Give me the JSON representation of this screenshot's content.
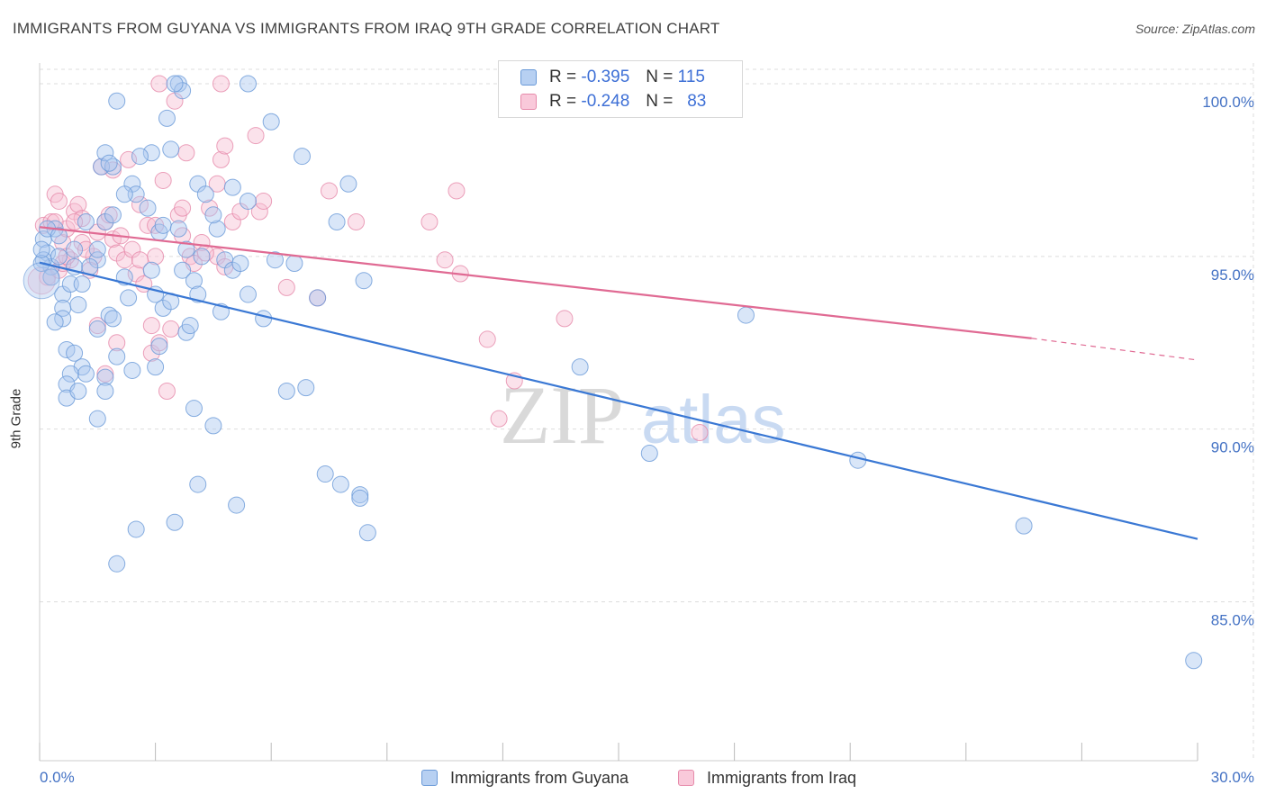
{
  "title": "IMMIGRANTS FROM GUYANA VS IMMIGRANTS FROM IRAQ 9TH GRADE CORRELATION CHART",
  "source": "Source: ZipAtlas.com",
  "watermark": {
    "zip": "ZIP",
    "atlas": "atlas"
  },
  "legend": {
    "r_label": "R =",
    "n_label": "N =",
    "guyana": {
      "r": "-0.395",
      "n": "115"
    },
    "iraq": {
      "r": "-0.248",
      "n": "83"
    }
  },
  "colors": {
    "guyana_fill": "#aac8f0",
    "guyana_stroke": "#6a9ad8",
    "guyana_line": "#3a78d4",
    "iraq_fill": "#f6bfd2",
    "iraq_stroke": "#e68aaa",
    "iraq_line": "#e06a93",
    "grid": "#dddddd",
    "tick_text": "#4472c4"
  },
  "chart_data": {
    "type": "scatter",
    "title": "IMMIGRANTS FROM GUYANA VS IMMIGRANTS FROM IRAQ 9TH GRADE CORRELATION CHART",
    "xlabel": "",
    "ylabel": "9th Grade",
    "xlim": [
      0,
      30
    ],
    "ylim": [
      80.4,
      100.6
    ],
    "y_ticks": [
      85,
      90,
      95,
      100
    ],
    "y_tick_labels": [
      "85.0%",
      "90.0%",
      "95.0%",
      "100.0%"
    ],
    "x_tick_labels": [
      "0.0%",
      "30.0%"
    ],
    "grid": true,
    "legend_position": "top-center",
    "series": [
      {
        "name": "Immigrants from Guyana",
        "trend": {
          "x": [
            0,
            30
          ],
          "y": [
            94.82,
            86.82
          ]
        },
        "points": [
          [
            0.1,
            95.5
          ],
          [
            0.2,
            95.1
          ],
          [
            0.3,
            94.7
          ],
          [
            0.4,
            95.8
          ],
          [
            0.5,
            95.0
          ],
          [
            0.1,
            94.9
          ],
          [
            0.2,
            95.8
          ],
          [
            0.6,
            93.9
          ],
          [
            0.6,
            93.5
          ],
          [
            0.6,
            93.2
          ],
          [
            0.8,
            94.2
          ],
          [
            0.9,
            94.7
          ],
          [
            1.0,
            93.6
          ],
          [
            1.1,
            94.2
          ],
          [
            0.7,
            92.3
          ],
          [
            0.9,
            92.2
          ],
          [
            1.1,
            91.8
          ],
          [
            1.2,
            91.6
          ],
          [
            0.8,
            91.6
          ],
          [
            0.7,
            91.3
          ],
          [
            0.7,
            90.9
          ],
          [
            1.0,
            91.1
          ],
          [
            1.5,
            92.9
          ],
          [
            1.5,
            94.9
          ],
          [
            1.5,
            95.2
          ],
          [
            1.7,
            96.0
          ],
          [
            1.9,
            96.2
          ],
          [
            1.6,
            97.6
          ],
          [
            1.7,
            98.0
          ],
          [
            1.9,
            97.6
          ],
          [
            1.8,
            93.3
          ],
          [
            1.9,
            93.2
          ],
          [
            2.0,
            92.1
          ],
          [
            2.2,
            94.4
          ],
          [
            2.3,
            93.8
          ],
          [
            1.7,
            91.5
          ],
          [
            1.7,
            91.1
          ],
          [
            1.5,
            90.3
          ],
          [
            2.4,
            97.1
          ],
          [
            2.5,
            96.8
          ],
          [
            2.8,
            96.4
          ],
          [
            2.9,
            98.0
          ],
          [
            3.1,
            95.7
          ],
          [
            3.2,
            95.9
          ],
          [
            2.9,
            94.6
          ],
          [
            3.0,
            93.9
          ],
          [
            3.2,
            93.5
          ],
          [
            3.1,
            92.4
          ],
          [
            3.0,
            91.8
          ],
          [
            2.4,
            91.7
          ],
          [
            3.3,
            99.0
          ],
          [
            3.4,
            98.1
          ],
          [
            3.6,
            95.8
          ],
          [
            3.8,
            95.2
          ],
          [
            3.7,
            94.6
          ],
          [
            3.4,
            93.7
          ],
          [
            3.8,
            92.8
          ],
          [
            3.9,
            93.0
          ],
          [
            4.0,
            94.3
          ],
          [
            4.1,
            93.9
          ],
          [
            4.1,
            97.1
          ],
          [
            4.3,
            96.8
          ],
          [
            4.6,
            95.8
          ],
          [
            4.8,
            94.9
          ],
          [
            4.7,
            93.4
          ],
          [
            5.0,
            94.6
          ],
          [
            5.2,
            94.8
          ],
          [
            5.4,
            96.6
          ],
          [
            5.4,
            93.9
          ],
          [
            4.0,
            90.6
          ],
          [
            4.5,
            90.1
          ],
          [
            4.1,
            88.4
          ],
          [
            5.1,
            87.8
          ],
          [
            3.6,
            100.0
          ],
          [
            3.7,
            99.8
          ],
          [
            5.4,
            100.0
          ],
          [
            6.0,
            98.9
          ],
          [
            6.8,
            97.9
          ],
          [
            6.1,
            94.9
          ],
          [
            6.6,
            94.8
          ],
          [
            6.4,
            91.1
          ],
          [
            5.8,
            93.2
          ],
          [
            6.9,
            91.2
          ],
          [
            7.2,
            93.8
          ],
          [
            7.7,
            96.0
          ],
          [
            8.0,
            97.1
          ],
          [
            8.4,
            94.3
          ],
          [
            7.4,
            88.7
          ],
          [
            7.8,
            88.4
          ],
          [
            8.3,
            88.1
          ],
          [
            8.3,
            88.0
          ],
          [
            8.5,
            87.0
          ],
          [
            2.0,
            86.1
          ],
          [
            2.5,
            87.1
          ],
          [
            3.5,
            87.3
          ],
          [
            0.05,
            94.8
          ],
          [
            0.05,
            95.2
          ],
          [
            0.3,
            94.4
          ],
          [
            0.5,
            95.6
          ],
          [
            0.9,
            95.2
          ],
          [
            1.3,
            94.7
          ],
          [
            14.0,
            91.8
          ],
          [
            15.8,
            89.3
          ],
          [
            18.3,
            93.3
          ],
          [
            21.2,
            89.1
          ],
          [
            25.5,
            87.2
          ],
          [
            29.9,
            83.3
          ],
          [
            1.8,
            97.7
          ],
          [
            2.6,
            97.9
          ],
          [
            3.5,
            100.0
          ],
          [
            2.0,
            99.5
          ],
          [
            4.5,
            96.2
          ],
          [
            5.0,
            97.0
          ],
          [
            1.2,
            96.0
          ],
          [
            2.2,
            96.8
          ],
          [
            4.2,
            95.0
          ],
          [
            0.4,
            93.1
          ]
        ]
      },
      {
        "name": "Immigrants from Iraq",
        "trend": {
          "x": [
            0,
            25.7
          ],
          "y": [
            95.85,
            92.63
          ]
        },
        "trend_dashed": {
          "x": [
            25.7,
            30
          ],
          "y": [
            92.63,
            92.0
          ]
        },
        "points": [
          [
            0.1,
            95.9
          ],
          [
            0.3,
            96.0
          ],
          [
            0.4,
            96.8
          ],
          [
            0.5,
            96.6
          ],
          [
            0.6,
            95.4
          ],
          [
            0.7,
            95.8
          ],
          [
            0.9,
            96.3
          ],
          [
            1.0,
            96.5
          ],
          [
            1.1,
            96.1
          ],
          [
            0.2,
            94.4
          ],
          [
            0.5,
            94.6
          ],
          [
            0.8,
            94.9
          ],
          [
            1.1,
            95.4
          ],
          [
            1.4,
            95.0
          ],
          [
            1.5,
            95.7
          ],
          [
            1.7,
            96.0
          ],
          [
            1.9,
            95.5
          ],
          [
            2.0,
            95.1
          ],
          [
            2.2,
            94.9
          ],
          [
            2.4,
            95.2
          ],
          [
            2.6,
            96.5
          ],
          [
            2.8,
            95.9
          ],
          [
            3.0,
            95.0
          ],
          [
            2.5,
            94.5
          ],
          [
            2.7,
            94.2
          ],
          [
            1.5,
            93.0
          ],
          [
            1.7,
            91.6
          ],
          [
            2.0,
            92.5
          ],
          [
            2.9,
            92.2
          ],
          [
            3.1,
            92.5
          ],
          [
            3.3,
            91.1
          ],
          [
            3.4,
            92.9
          ],
          [
            3.6,
            96.2
          ],
          [
            3.7,
            96.4
          ],
          [
            3.9,
            95.0
          ],
          [
            4.0,
            94.8
          ],
          [
            4.2,
            95.4
          ],
          [
            4.4,
            96.4
          ],
          [
            4.6,
            95.0
          ],
          [
            4.8,
            94.7
          ],
          [
            5.0,
            96.0
          ],
          [
            5.2,
            96.3
          ],
          [
            4.6,
            97.1
          ],
          [
            4.7,
            97.8
          ],
          [
            4.8,
            98.2
          ],
          [
            3.2,
            97.2
          ],
          [
            3.5,
            99.5
          ],
          [
            3.8,
            98.0
          ],
          [
            3.1,
            100.0
          ],
          [
            4.7,
            100.0
          ],
          [
            5.6,
            98.5
          ],
          [
            5.7,
            96.3
          ],
          [
            6.4,
            94.1
          ],
          [
            7.2,
            93.8
          ],
          [
            7.5,
            96.9
          ],
          [
            8.2,
            96.0
          ],
          [
            10.1,
            96.0
          ],
          [
            10.5,
            94.9
          ],
          [
            10.9,
            94.5
          ],
          [
            11.6,
            92.6
          ],
          [
            12.3,
            91.4
          ],
          [
            11.9,
            90.3
          ],
          [
            13.6,
            93.2
          ],
          [
            10.8,
            96.9
          ],
          [
            17.1,
            89.9
          ],
          [
            14.2,
            100.0
          ],
          [
            1.9,
            97.5
          ],
          [
            2.3,
            97.8
          ],
          [
            1.6,
            97.6
          ],
          [
            2.6,
            94.9
          ],
          [
            0.6,
            94.8
          ],
          [
            1.2,
            95.2
          ],
          [
            2.1,
            95.6
          ],
          [
            3.0,
            95.9
          ],
          [
            0.9,
            96.0
          ],
          [
            1.8,
            96.2
          ],
          [
            4.3,
            95.1
          ],
          [
            5.8,
            96.6
          ],
          [
            0.4,
            96.0
          ],
          [
            0.7,
            95.0
          ],
          [
            1.3,
            94.6
          ],
          [
            2.9,
            93.0
          ],
          [
            3.7,
            95.6
          ]
        ]
      }
    ]
  },
  "bottom_legend": [
    "Immigrants from Guyana",
    "Immigrants from Iraq"
  ]
}
